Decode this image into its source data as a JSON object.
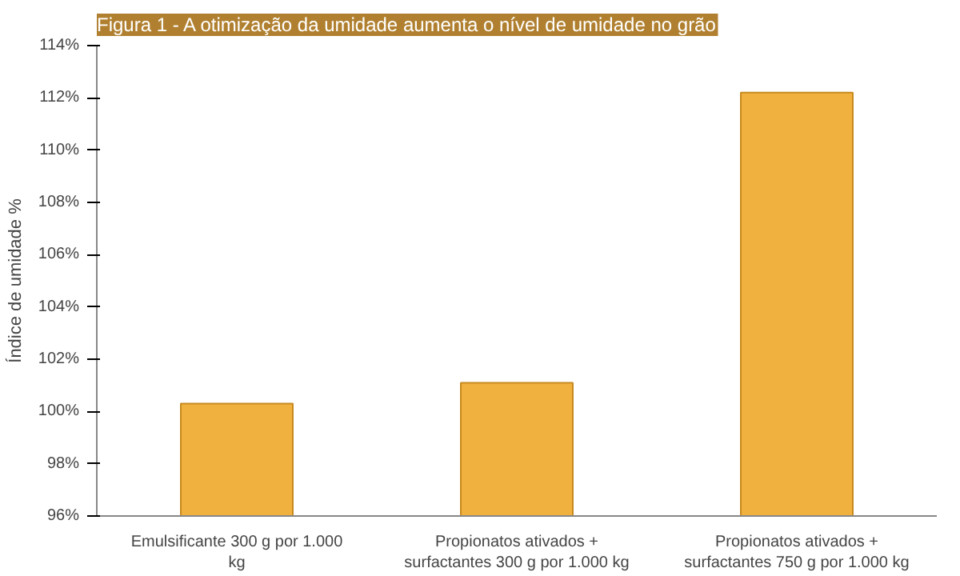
{
  "chart_data": {
    "type": "bar",
    "title": "Figura 1 - A otimização da umidade aumenta o nível de umidade no grão",
    "ylabel": "Índice de umidade %",
    "categories": [
      "Emulsificante 300 g por 1.000 kg",
      "Propionatos ativados + surfactantes 300 g por 1.000 kg",
      "Propionatos ativados + surfactantes 750 g por 1.000 kg"
    ],
    "values": [
      100.3,
      101.1,
      112.2
    ],
    "color": "#f0b13e",
    "ylim": [
      96,
      114
    ],
    "yticks": [
      {
        "value": 96,
        "label": "96%"
      },
      {
        "value": 98,
        "label": "98%"
      },
      {
        "value": 100,
        "label": "100%"
      },
      {
        "value": 102,
        "label": "102%"
      },
      {
        "value": 104,
        "label": "104%"
      },
      {
        "value": 106,
        "label": "106%"
      },
      {
        "value": 108,
        "label": "108%"
      },
      {
        "value": 110,
        "label": "110%"
      },
      {
        "value": 112,
        "label": "112%"
      },
      {
        "value": 114,
        "label": "114%"
      }
    ],
    "grid": false
  }
}
